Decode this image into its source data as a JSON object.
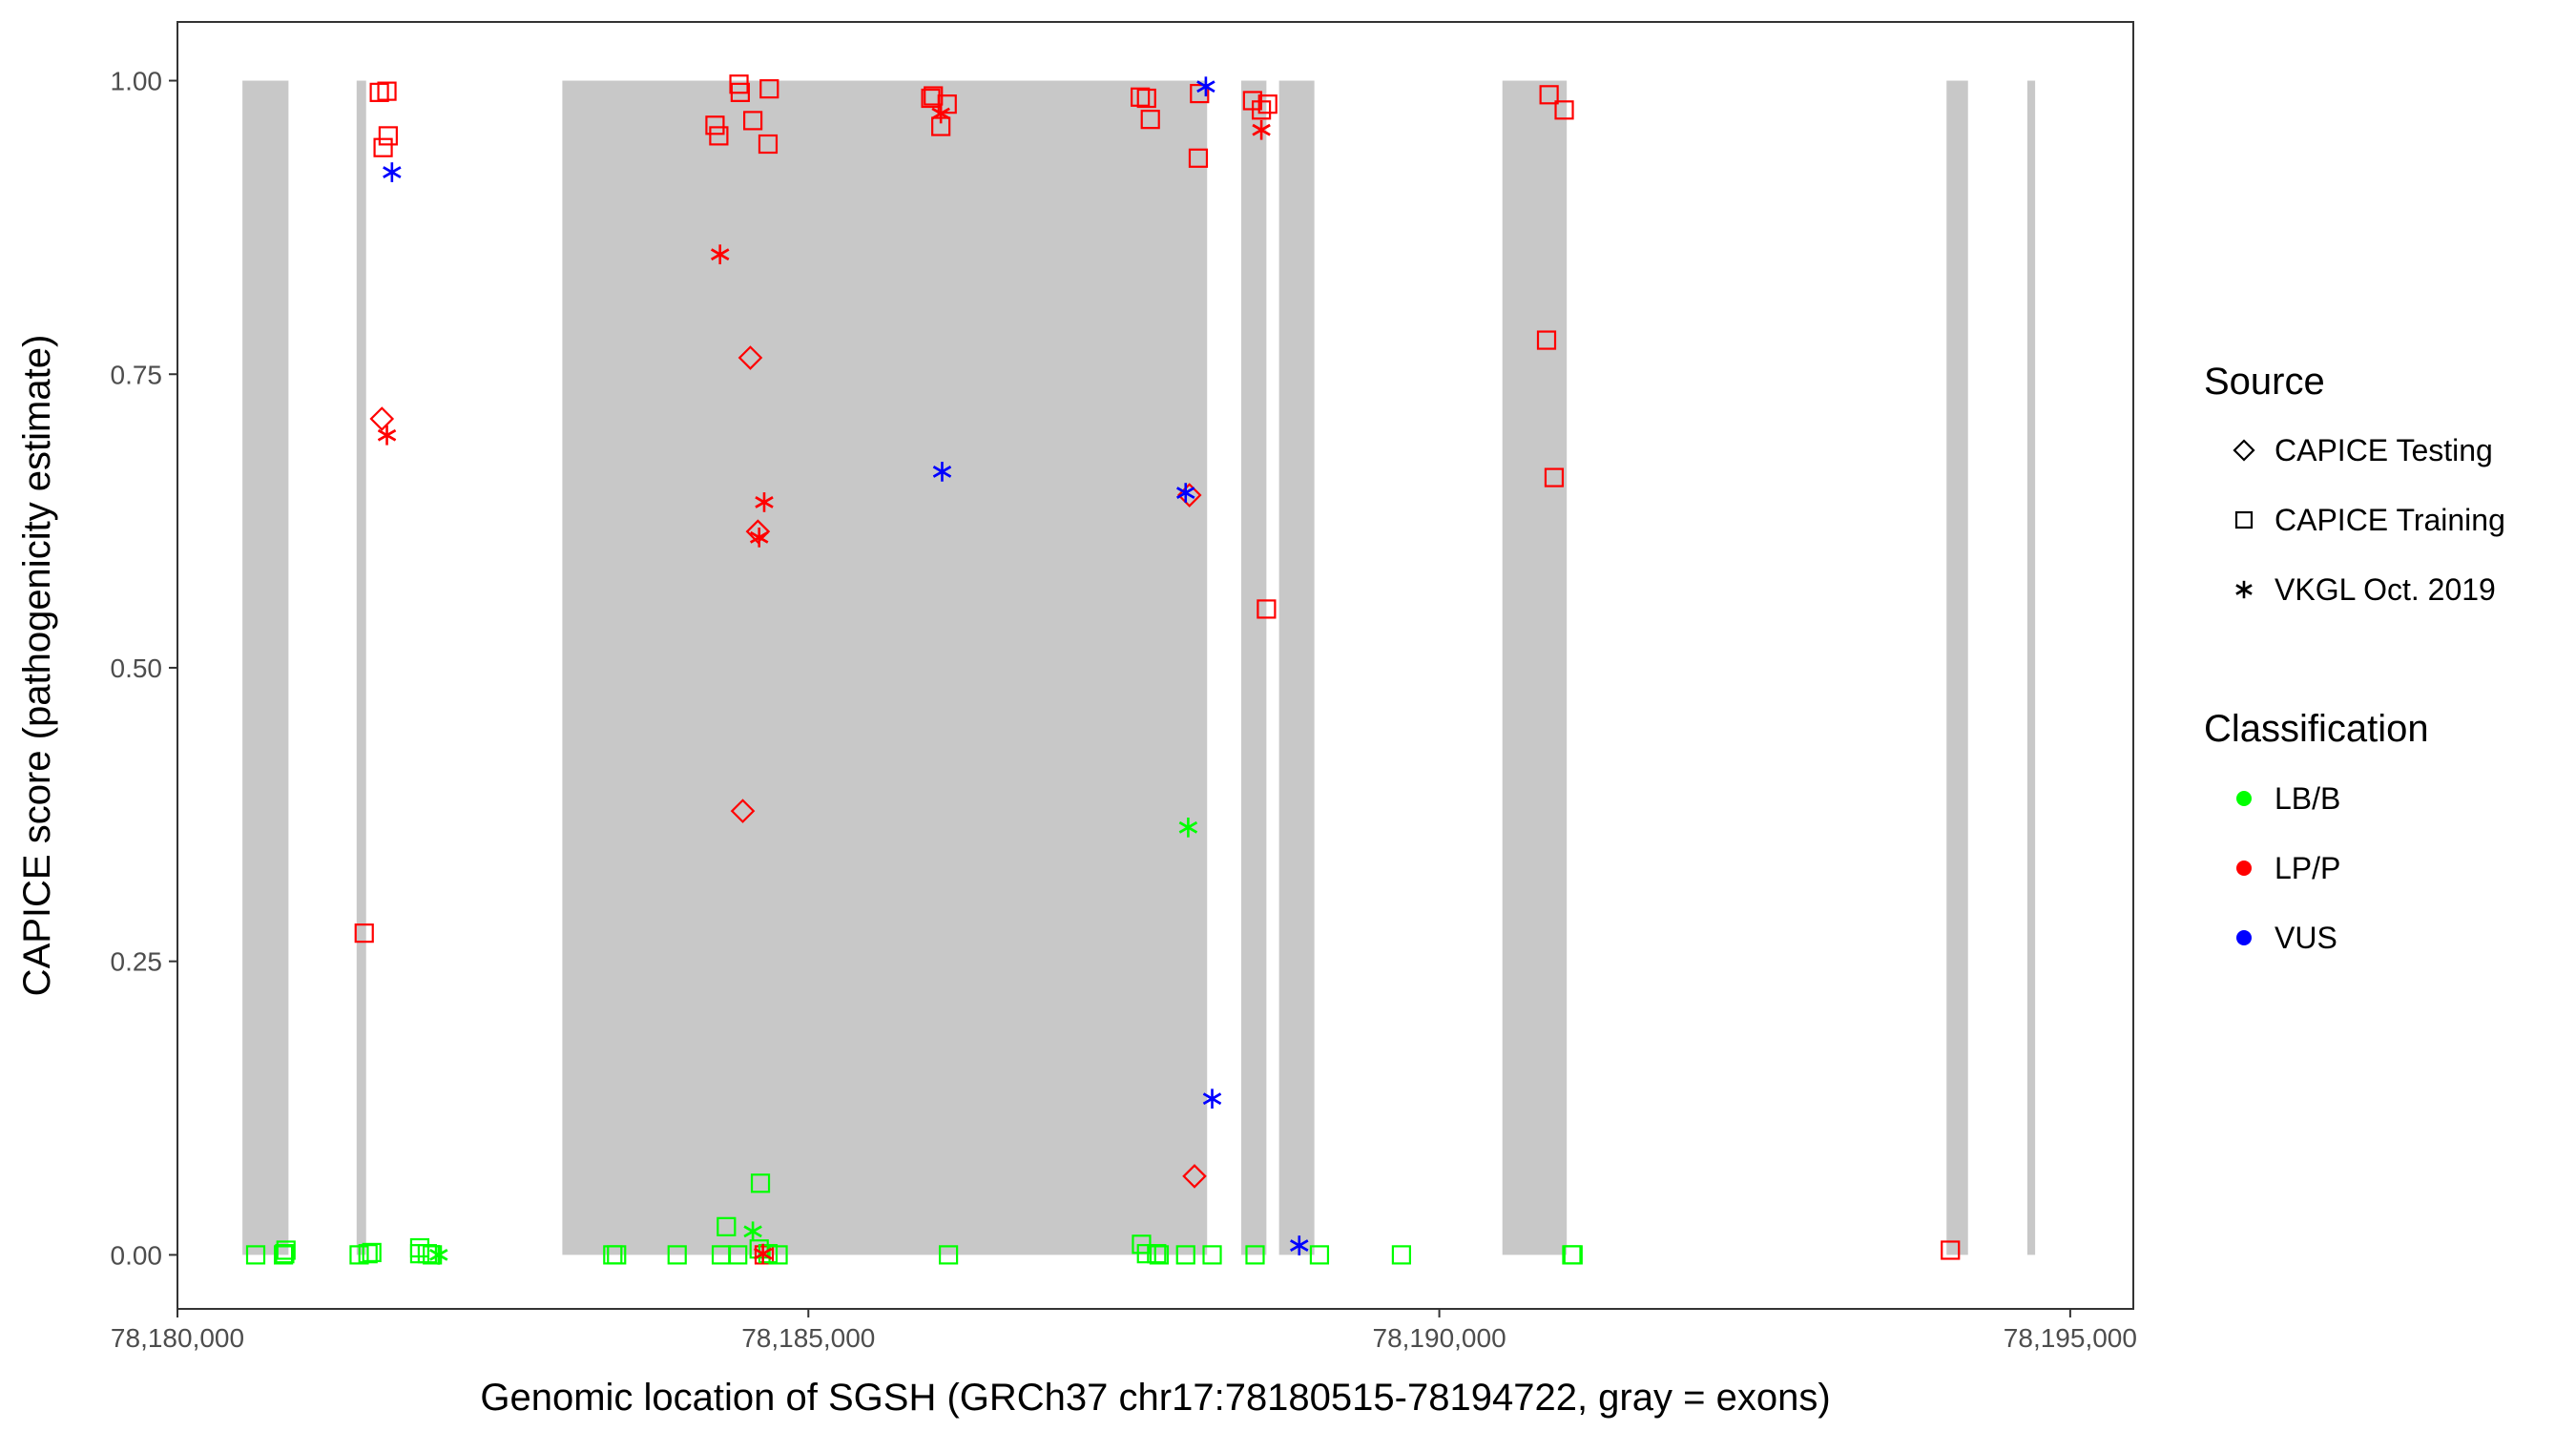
{
  "chart_data": {
    "type": "scatter",
    "xlabel": "Genomic location of SGSH (GRCh37 chr17:78180515-78194722, gray = exons)",
    "ylabel": "CAPICE score (pathogenicity estimate)",
    "xlim": [
      78180000,
      78195500
    ],
    "ylim": [
      -0.046,
      1.05
    ],
    "x_ticks": [
      78180000,
      78185000,
      78190000,
      78195000
    ],
    "x_tick_labels": [
      "78,180,000",
      "78,185,000",
      "78,190,000",
      "78,195,000"
    ],
    "y_ticks": [
      0.0,
      0.25,
      0.5,
      0.75,
      1.0
    ],
    "y_tick_labels": [
      "0.00",
      "0.25",
      "0.50",
      "0.75",
      "1.00"
    ],
    "grid": false,
    "exons": [
      [
        78180515,
        78180880
      ],
      [
        78181420,
        78181495
      ],
      [
        78183050,
        78188160
      ],
      [
        78188430,
        78188630
      ],
      [
        78188730,
        78189010
      ],
      [
        78190500,
        78191010
      ],
      [
        78194020,
        78194190
      ],
      [
        78194660,
        78194722
      ]
    ],
    "exon_color": "#c8c8c8",
    "legend": {
      "placement": "right",
      "source_title": "Source",
      "source_items": [
        {
          "label": "CAPICE Testing",
          "shape": "diamond"
        },
        {
          "label": "CAPICE Training",
          "shape": "square"
        },
        {
          "label": "VKGL Oct. 2019",
          "shape": "asterisk"
        }
      ],
      "class_title": "Classification",
      "class_items": [
        {
          "label": "LB/B",
          "color": "#00ff00"
        },
        {
          "label": "LP/P",
          "color": "#ff0000"
        },
        {
          "label": "VUS",
          "color": "#0000ff"
        }
      ]
    },
    "series": [
      {
        "source": "CAPICE Training",
        "classification": "LP/P",
        "points": [
          [
            78181480,
            0.274
          ],
          [
            78181600,
            0.99
          ],
          [
            78181660,
            0.991
          ],
          [
            78181630,
            0.943
          ],
          [
            78181670,
            0.953
          ],
          [
            78184260,
            0.962
          ],
          [
            78184290,
            0.953
          ],
          [
            78184450,
            0.997
          ],
          [
            78184460,
            0.99
          ],
          [
            78184560,
            0.966
          ],
          [
            78184690,
            0.993
          ],
          [
            78184680,
            0.946
          ],
          [
            78185970,
            0.985
          ],
          [
            78185990,
            0.987
          ],
          [
            78186100,
            0.98
          ],
          [
            78186050,
            0.961
          ],
          [
            78187630,
            0.986
          ],
          [
            78187680,
            0.985
          ],
          [
            78187710,
            0.967
          ],
          [
            78188100,
            0.989
          ],
          [
            78188090,
            0.934
          ],
          [
            78188520,
            0.983
          ],
          [
            78188590,
            0.975
          ],
          [
            78188640,
            0.98
          ],
          [
            78188630,
            0.55
          ],
          [
            78190870,
            0.988
          ],
          [
            78190990,
            0.975
          ],
          [
            78190850,
            0.779
          ],
          [
            78190910,
            0.662
          ],
          [
            78194050,
            0.004
          ],
          [
            78184650,
            0.0
          ]
        ]
      },
      {
        "source": "CAPICE Training",
        "classification": "LB/B",
        "points": [
          [
            78180620,
            0.0
          ],
          [
            78180840,
            0.0
          ],
          [
            78180860,
            0.004
          ],
          [
            78180850,
            0.001
          ],
          [
            78181440,
            0.0
          ],
          [
            78181510,
            0.001
          ],
          [
            78181540,
            0.002
          ],
          [
            78181920,
            0.006
          ],
          [
            78181920,
            0.001
          ],
          [
            78181980,
            0.001
          ],
          [
            78182020,
            0.0
          ],
          [
            78183450,
            0.0
          ],
          [
            78183480,
            0.0
          ],
          [
            78183960,
            0.0
          ],
          [
            78184350,
            0.024
          ],
          [
            78184310,
            0.0
          ],
          [
            78184440,
            0.0
          ],
          [
            78184620,
            0.061
          ],
          [
            78184610,
            0.005
          ],
          [
            78184680,
            0.001
          ],
          [
            78184760,
            0.0
          ],
          [
            78186110,
            0.0
          ],
          [
            78187640,
            0.009
          ],
          [
            78187680,
            0.001
          ],
          [
            78187780,
            0.0
          ],
          [
            78187760,
            0.001
          ],
          [
            78187990,
            0.0
          ],
          [
            78188200,
            0.0
          ],
          [
            78188540,
            0.0
          ],
          [
            78189050,
            0.0
          ],
          [
            78189700,
            0.0
          ],
          [
            78191060,
            0.0
          ],
          [
            78191050,
            0.0
          ]
        ]
      },
      {
        "source": "CAPICE Testing",
        "classification": "LP/P",
        "points": [
          [
            78181620,
            0.712
          ],
          [
            78184540,
            0.764
          ],
          [
            78184600,
            0.616
          ],
          [
            78184480,
            0.378
          ],
          [
            78188020,
            0.647
          ],
          [
            78188060,
            0.067
          ]
        ]
      },
      {
        "source": "VKGL Oct. 2019",
        "classification": "LP/P",
        "points": [
          [
            78181660,
            0.698
          ],
          [
            78184300,
            0.852
          ],
          [
            78184650,
            0.641
          ],
          [
            78184610,
            0.611
          ],
          [
            78186050,
            0.972
          ],
          [
            78188590,
            0.958
          ],
          [
            78184640,
            0.001
          ]
        ]
      },
      {
        "source": "VKGL Oct. 2019",
        "classification": "VUS",
        "points": [
          [
            78181700,
            0.922
          ],
          [
            78186060,
            0.667
          ],
          [
            78187990,
            0.649
          ],
          [
            78188150,
            0.995
          ],
          [
            78188200,
            0.133
          ],
          [
            78188890,
            0.008
          ]
        ]
      },
      {
        "source": "VKGL Oct. 2019",
        "classification": "LB/B",
        "points": [
          [
            78188010,
            0.364
          ],
          [
            78184560,
            0.02
          ],
          [
            78182070,
            0.0
          ]
        ]
      }
    ]
  }
}
